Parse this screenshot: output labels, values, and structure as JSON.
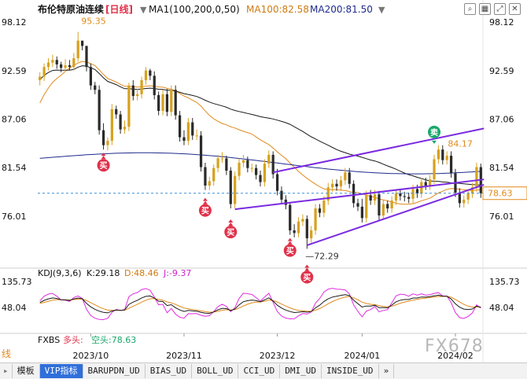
{
  "header": {
    "title": "布伦特原油连续",
    "period": "[日线]",
    "ma_label": "MA1(100,200,0,50)",
    "ma100_label": "MA100:82.58",
    "ma200_label": "MA200:81.50",
    "arrow": "▼"
  },
  "toolbar_icons": [
    "search-icon",
    "chart-icon",
    "expand-icon",
    "close-icon"
  ],
  "kdj_header": {
    "label": "KDJ(9,3,6)",
    "k": "K:29.18",
    "d": "D:48.46",
    "j": "J:-9.37"
  },
  "fxbs_header": {
    "label": "FXBS",
    "long": "多头:",
    "short": "空头:78.63"
  },
  "price_axis": [
    "98.12",
    "92.59",
    "87.06",
    "81.54",
    "76.01"
  ],
  "kdj_axis": [
    "135.73",
    "48.04"
  ],
  "current_price": "78.63",
  "annotations": {
    "high": "95.35",
    "low": "72.29",
    "recent_high": "84.17"
  },
  "signals": {
    "buy": "买",
    "sell": "卖"
  },
  "time_axis": [
    "2023/10",
    "2023/11",
    "2023/12",
    "2024/01",
    "2024/02"
  ],
  "left_edge_text": "线",
  "tabs": [
    "模板",
    "VIP指标",
    "BARUPDN_UD",
    "BIAS_UD",
    "BOLL_UD",
    "CCI_UD",
    "DMI_UD",
    "INSIDE_UD",
    "»"
  ],
  "watermark": "FX678",
  "colors": {
    "up": "#d7a11f",
    "down": "#2b2b2b",
    "ma100": "#e08a1c",
    "ma200": "#1a1a1a",
    "ma_blue": "#1f2b8c",
    "channel": "#7b2be0",
    "buy": "#e0314a",
    "sell": "#19a86b",
    "k": "#1a1a1a",
    "d": "#e08a1c",
    "j": "#e02de0",
    "current": "#e08a1c"
  },
  "chart_data": {
    "type": "candlestick",
    "title": "布伦特原油连续 [日线]",
    "ylim": [
      70,
      100
    ],
    "indicator_ylim": [
      -30,
      160
    ],
    "x": [
      "2023-09-14",
      "2023-09-15",
      "2023-09-18",
      "2023-09-19",
      "2023-09-20",
      "2023-09-21",
      "2023-09-22",
      "2023-09-25",
      "2023-09-26",
      "2023-09-27",
      "2023-09-28",
      "2023-09-29",
      "2023-10-02",
      "2023-10-03",
      "2023-10-04",
      "2023-10-05",
      "2023-10-06",
      "2023-10-09",
      "2023-10-10",
      "2023-10-11",
      "2023-10-12",
      "2023-10-13",
      "2023-10-16",
      "2023-10-17",
      "2023-10-18",
      "2023-10-19",
      "2023-10-20",
      "2023-10-23",
      "2023-10-24",
      "2023-10-25",
      "2023-10-26",
      "2023-10-27",
      "2023-10-30",
      "2023-10-31",
      "2023-11-01",
      "2023-11-02",
      "2023-11-03",
      "2023-11-06",
      "2023-11-07",
      "2023-11-08",
      "2023-11-09",
      "2023-11-10",
      "2023-11-13",
      "2023-11-14",
      "2023-11-15",
      "2023-11-16",
      "2023-11-17",
      "2023-11-20",
      "2023-11-21",
      "2023-11-22",
      "2023-11-23",
      "2023-11-24",
      "2023-11-27",
      "2023-11-28",
      "2023-11-29",
      "2023-11-30",
      "2023-12-01",
      "2023-12-04",
      "2023-12-05",
      "2023-12-06",
      "2023-12-07",
      "2023-12-08",
      "2023-12-11",
      "2023-12-12",
      "2023-12-13",
      "2023-12-14",
      "2023-12-15",
      "2023-12-18",
      "2023-12-19",
      "2023-12-20",
      "2023-12-21",
      "2023-12-22",
      "2023-12-26",
      "2023-12-27",
      "2023-12-28",
      "2023-12-29",
      "2024-01-02",
      "2024-01-03",
      "2024-01-04",
      "2024-01-05",
      "2024-01-08",
      "2024-01-09",
      "2024-01-10",
      "2024-01-11",
      "2024-01-12",
      "2024-01-15",
      "2024-01-16",
      "2024-01-17",
      "2024-01-18",
      "2024-01-19",
      "2024-01-22",
      "2024-01-23",
      "2024-01-24",
      "2024-01-25",
      "2024-01-26",
      "2024-01-29",
      "2024-01-30",
      "2024-01-31",
      "2024-02-01",
      "2024-02-02",
      "2024-02-05",
      "2024-02-06",
      "2024-02-07",
      "2024-02-08",
      "2024-02-09"
    ],
    "open": [
      91.5,
      91.9,
      93.0,
      93.5,
      93.8,
      93.3,
      92.9,
      93.2,
      93.0,
      94.0,
      96.0,
      95.4,
      93.0,
      90.9,
      90.4,
      85.8,
      84.1,
      84.6,
      88.2,
      87.6,
      85.9,
      86.2,
      90.9,
      89.7,
      89.9,
      91.5,
      92.6,
      92.0,
      89.8,
      88.0,
      89.9,
      87.9,
      90.4,
      87.5,
      85.0,
      84.6,
      86.7,
      85.2,
      85.2,
      81.6,
      79.5,
      80.0,
      81.5,
      82.6,
      82.6,
      81.2,
      77.4,
      80.6,
      82.1,
      82.4,
      81.5,
      81.5,
      80.7,
      79.9,
      82.0,
      83.0,
      80.8,
      78.9,
      77.9,
      77.3,
      74.4,
      74.1,
      75.4,
      75.7,
      73.5,
      74.4,
      76.9,
      76.4,
      77.8,
      79.3,
      79.7,
      79.4,
      80.1,
      81.0,
      79.7,
      77.5,
      77.1,
      75.8,
      78.4,
      77.8,
      78.5,
      76.1,
      77.4,
      76.9,
      77.8,
      78.6,
      78.3,
      78.2,
      78.0,
      79.1,
      78.6,
      79.9,
      79.5,
      80.2,
      82.5,
      83.6,
      82.4,
      82.9,
      80.9,
      78.7,
      77.5,
      77.9,
      78.6,
      79.3,
      81.6
    ],
    "close": [
      91.9,
      93.0,
      93.5,
      93.8,
      93.3,
      92.9,
      93.2,
      93.0,
      94.0,
      96.0,
      95.4,
      93.0,
      90.9,
      90.4,
      85.8,
      84.1,
      84.6,
      88.2,
      87.6,
      85.9,
      86.2,
      90.9,
      89.7,
      89.9,
      91.5,
      92.6,
      92.0,
      89.8,
      88.0,
      89.9,
      87.9,
      90.4,
      87.5,
      85.0,
      84.6,
      86.7,
      85.2,
      85.2,
      81.6,
      79.5,
      80.0,
      81.5,
      82.6,
      82.6,
      81.2,
      77.4,
      80.6,
      82.1,
      82.4,
      81.5,
      81.5,
      80.7,
      79.9,
      82.0,
      83.0,
      80.8,
      78.9,
      77.9,
      77.3,
      74.4,
      74.1,
      75.4,
      75.7,
      73.5,
      74.4,
      76.9,
      76.4,
      77.8,
      79.3,
      79.7,
      79.4,
      80.1,
      81.0,
      79.7,
      77.5,
      77.1,
      75.8,
      78.4,
      77.8,
      78.5,
      76.1,
      77.4,
      76.9,
      77.8,
      78.6,
      78.3,
      78.2,
      78.0,
      79.1,
      78.6,
      79.9,
      79.5,
      80.2,
      82.5,
      83.6,
      82.4,
      82.9,
      80.9,
      78.7,
      77.5,
      77.9,
      78.6,
      79.3,
      81.6,
      78.63
    ],
    "high": [
      92.4,
      93.4,
      94.0,
      94.4,
      94.2,
      93.6,
      93.9,
      93.8,
      94.6,
      97.0,
      95.9,
      95.4,
      93.4,
      91.3,
      90.9,
      86.6,
      85.0,
      88.8,
      88.6,
      88.0,
      86.9,
      91.2,
      91.5,
      90.5,
      91.9,
      93.0,
      92.8,
      92.5,
      90.2,
      90.4,
      90.5,
      90.9,
      90.9,
      88.0,
      85.8,
      87.2,
      87.2,
      85.9,
      85.7,
      82.1,
      80.5,
      81.9,
      83.0,
      83.3,
      82.9,
      81.6,
      81.1,
      82.6,
      83.0,
      82.8,
      82.0,
      81.9,
      81.2,
      82.5,
      83.5,
      83.4,
      81.4,
      79.4,
      78.4,
      77.6,
      75.1,
      75.9,
      76.2,
      76.1,
      74.9,
      77.4,
      77.4,
      78.3,
      79.8,
      80.2,
      80.2,
      80.6,
      81.5,
      81.5,
      80.1,
      78.0,
      78.0,
      78.9,
      79.0,
      79.0,
      78.9,
      77.9,
      77.8,
      78.3,
      79.1,
      79.1,
      78.8,
      78.7,
      79.6,
      79.6,
      80.4,
      80.4,
      80.7,
      83.0,
      84.1,
      84.1,
      83.4,
      83.4,
      81.4,
      79.2,
      78.4,
      79.1,
      79.8,
      82.1,
      82.0
    ],
    "low": [
      90.9,
      91.4,
      92.6,
      93.0,
      92.8,
      92.4,
      92.5,
      92.6,
      92.6,
      93.6,
      94.9,
      92.5,
      90.4,
      89.9,
      85.3,
      83.6,
      83.5,
      84.1,
      87.1,
      85.4,
      85.4,
      85.7,
      89.2,
      89.2,
      89.4,
      91.0,
      91.5,
      89.3,
      87.5,
      87.5,
      87.4,
      87.4,
      87.0,
      84.5,
      84.1,
      84.1,
      84.7,
      84.7,
      81.1,
      79.0,
      79.0,
      79.5,
      81.0,
      82.1,
      80.7,
      76.9,
      76.9,
      80.1,
      81.6,
      81.0,
      81.0,
      80.2,
      79.4,
      79.4,
      81.5,
      80.3,
      78.4,
      77.4,
      76.8,
      73.9,
      73.6,
      73.6,
      74.9,
      72.3,
      73.0,
      73.9,
      75.9,
      75.9,
      77.3,
      78.8,
      78.9,
      78.9,
      79.6,
      79.2,
      77.0,
      76.6,
      75.3,
      75.3,
      77.3,
      77.3,
      75.6,
      75.6,
      76.4,
      76.4,
      77.3,
      77.8,
      77.7,
      77.5,
      77.5,
      78.1,
      78.1,
      79.0,
      79.0,
      79.7,
      82.0,
      81.9,
      81.9,
      80.4,
      78.2,
      77.0,
      77.0,
      77.4,
      78.1,
      78.8,
      78.1
    ],
    "indicators": {
      "MA100": 82.58,
      "MA200": 81.5,
      "K": 29.18,
      "D": 48.46,
      "J": -9.37
    }
  }
}
